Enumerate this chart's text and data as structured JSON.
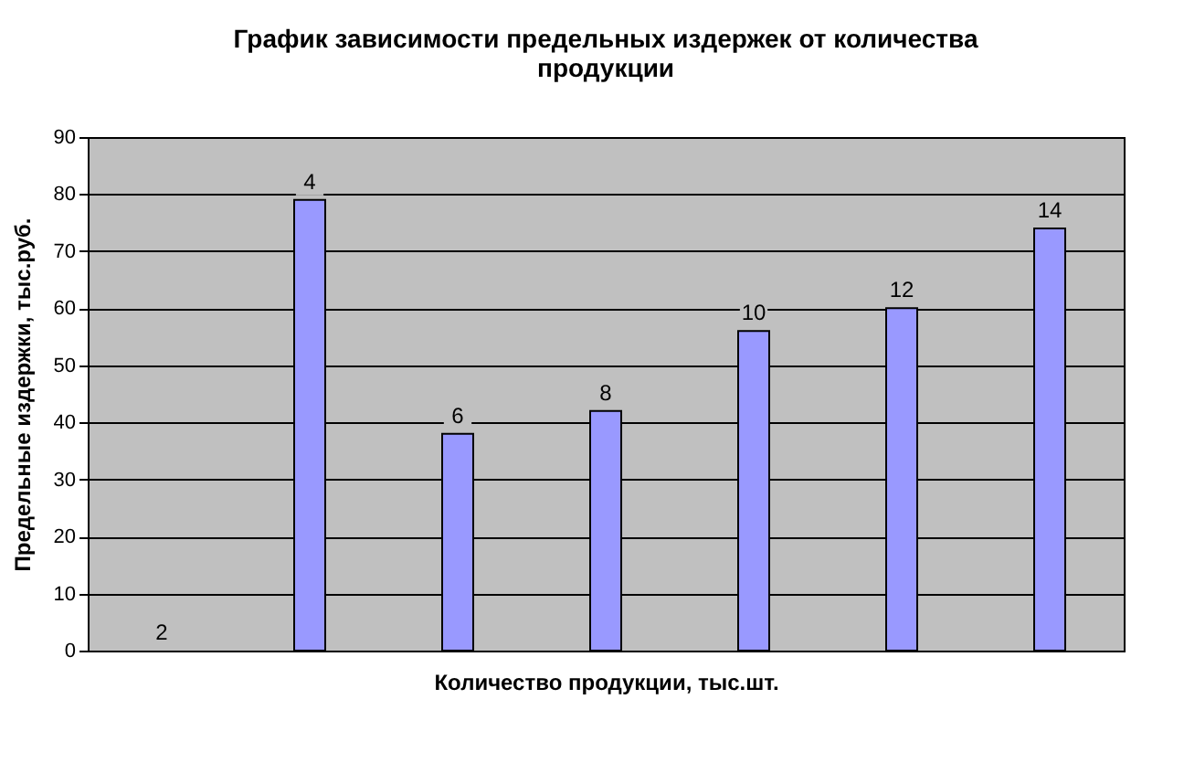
{
  "chart_data": {
    "type": "bar",
    "title": "График зависимости предельных издержек от количества продукции",
    "xlabel": "Количество продукции, тыс.шт.",
    "ylabel": "Предельные издержки, тыс.руб.",
    "categories": [
      "2",
      "4",
      "6",
      "8",
      "10",
      "12",
      "14"
    ],
    "values": [
      0,
      79,
      38,
      42,
      56,
      60,
      74
    ],
    "color": "#9999ff",
    "ylim": [
      0,
      90
    ],
    "yticks": [
      0,
      10,
      20,
      30,
      40,
      50,
      60,
      70,
      80,
      90
    ],
    "grid": "y",
    "tick_labels": "y"
  }
}
